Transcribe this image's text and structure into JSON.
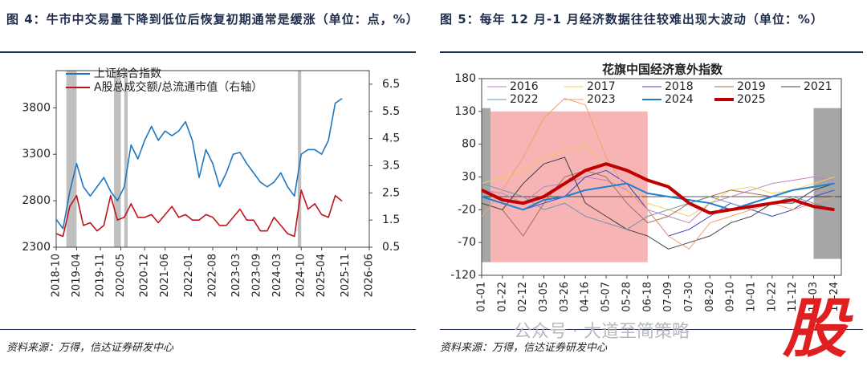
{
  "chart_data": [
    {
      "type": "line",
      "title": "图 4：牛市中交易量下降到低位后恢复初期通常是缓涨（单位：点，%）",
      "source": "资料来源：万得，信达证券研发中心",
      "x": [
        "2018-10",
        "2018-12",
        "2019-02",
        "2019-04",
        "2019-06",
        "2019-08",
        "2019-10",
        "2019-12",
        "2020-02",
        "2020-04",
        "2020-06",
        "2020-08",
        "2020-10",
        "2020-12",
        "2021-02",
        "2021-04",
        "2021-06",
        "2021-08",
        "2021-10",
        "2021-12",
        "2022-02",
        "2022-04",
        "2022-06",
        "2022-08",
        "2022-10",
        "2022-12",
        "2023-02",
        "2023-04",
        "2023-06",
        "2023-08",
        "2023-10",
        "2023-12",
        "2024-02",
        "2024-04",
        "2024-06",
        "2024-08",
        "2024-10",
        "2024-12",
        "2025-02",
        "2025-04",
        "2025-06",
        "2025-08",
        "2025-10"
      ],
      "xlim": [
        "2018-10",
        "2026-06"
      ],
      "xticks": [
        "2018-10",
        "2019-04",
        "2019-11",
        "2020-05",
        "2020-12",
        "2021-06",
        "2022-01",
        "2022-08",
        "2023-03",
        "2023-09",
        "2024-03",
        "2024-10",
        "2025-04",
        "2025-11",
        "2026-06"
      ],
      "ylim": [
        2300,
        4200
      ],
      "yticks": [
        2300,
        2800,
        3300,
        3800
      ],
      "y2lim": [
        0.5,
        7
      ],
      "y2ticks": [
        0.5,
        1.5,
        2.5,
        3.5,
        4.5,
        5.5,
        6.5
      ],
      "highlight_periods": [
        [
          "2019-01",
          "2019-04"
        ],
        [
          "2020-03",
          "2020-05"
        ],
        [
          "2020-06",
          "2020-07"
        ],
        [
          "2024-09",
          "2024-10"
        ]
      ],
      "highlight_color": "#bfbfbf",
      "series": [
        {
          "name": "上证综合指数",
          "color": "#1f77c0",
          "values": [
            2600,
            2500,
            2900,
            3200,
            2950,
            2850,
            2950,
            3050,
            2900,
            2800,
            2950,
            3400,
            3250,
            3450,
            3600,
            3450,
            3550,
            3500,
            3550,
            3650,
            3450,
            3050,
            3350,
            3200,
            2950,
            3100,
            3300,
            3320,
            3200,
            3100,
            3000,
            2950,
            3000,
            3100,
            2950,
            2850,
            3300,
            3350,
            3350,
            3300,
            3450,
            3850,
            3900
          ]
        },
        {
          "name": "A股总成交额/总流通市值（右轴）",
          "color": "#c0141c",
          "axis": "y2",
          "values": [
            1.0,
            0.9,
            2.0,
            2.4,
            1.3,
            1.4,
            1.1,
            1.3,
            2.4,
            1.5,
            1.6,
            2.1,
            1.6,
            1.6,
            1.7,
            1.4,
            1.7,
            2.0,
            1.6,
            1.7,
            1.5,
            1.5,
            1.7,
            1.6,
            1.3,
            1.3,
            1.6,
            1.9,
            1.5,
            1.5,
            1.1,
            1.1,
            1.6,
            1.3,
            1.0,
            0.9,
            2.6,
            1.9,
            2.1,
            1.7,
            1.6,
            2.4,
            2.2
          ]
        }
      ]
    },
    {
      "type": "line",
      "title": "图 5：每年 12 月-1 月经济数据往往较难出现大波动（单位：%）",
      "chart_title": "花旗中国经济意外指数",
      "source": "资料来源：万得，信达证券研发中心",
      "x": [
        "01-01",
        "01-22",
        "02-12",
        "03-05",
        "03-26",
        "04-16",
        "05-07",
        "05-28",
        "06-18",
        "07-09",
        "07-30",
        "08-20",
        "09-10",
        "10-01",
        "10-22",
        "11-12",
        "12-03",
        "12-24"
      ],
      "xlim": [
        "01-01",
        "12-31"
      ],
      "xticks": [
        "01-01",
        "01-22",
        "02-12",
        "03-05",
        "03-26",
        "04-16",
        "05-07",
        "05-28",
        "06-18",
        "07-09",
        "07-30",
        "08-20",
        "09-10",
        "10-01",
        "10-22",
        "11-12",
        "12-03",
        "12-24"
      ],
      "ylim": [
        -120,
        180
      ],
      "yticks": [
        -120,
        -70,
        -20,
        30,
        80,
        130,
        180
      ],
      "highlights": [
        {
          "x": [
            "01-01",
            "01-10"
          ],
          "y": [
            -100,
            135
          ],
          "color": "#a6a6a6"
        },
        {
          "x": [
            "01-10",
            "06-18"
          ],
          "y": [
            -100,
            130
          ],
          "color": "#f7b4b4"
        },
        {
          "x": [
            "12-03",
            "12-31"
          ],
          "y": [
            -95,
            135
          ],
          "color": "#a6a6a6"
        }
      ],
      "series": [
        {
          "name": "2016",
          "color": "#c080c0",
          "line_width": 1,
          "values": [
            10,
            5,
            -10,
            15,
            20,
            30,
            25,
            10,
            -20,
            -30,
            -40,
            -10,
            0,
            10,
            20,
            25,
            30,
            25
          ]
        },
        {
          "name": "2017",
          "color": "#f0d060",
          "line_width": 1,
          "values": [
            20,
            30,
            40,
            60,
            70,
            80,
            40,
            20,
            -10,
            -20,
            -30,
            -10,
            10,
            15,
            5,
            10,
            20,
            30
          ]
        },
        {
          "name": "2018",
          "color": "#4040c0",
          "line_width": 1,
          "values": [
            0,
            -10,
            -20,
            -10,
            0,
            30,
            40,
            20,
            -20,
            -60,
            -50,
            -30,
            -10,
            -20,
            -30,
            -20,
            0,
            10
          ]
        },
        {
          "name": "2019",
          "color": "#a07050",
          "line_width": 1,
          "values": [
            -10,
            -20,
            -60,
            -10,
            30,
            40,
            30,
            -10,
            -40,
            -30,
            -10,
            0,
            10,
            5,
            0,
            10,
            15,
            20
          ]
        },
        {
          "name": "2021",
          "color": "#404040",
          "line_width": 1,
          "values": [
            -10,
            -20,
            20,
            50,
            60,
            -10,
            -30,
            -50,
            -60,
            -80,
            -70,
            -60,
            -40,
            -30,
            -10,
            -10,
            10,
            20
          ]
        },
        {
          "name": "2022",
          "color": "#7090b0",
          "line_width": 1,
          "values": [
            20,
            10,
            0,
            -20,
            -10,
            -30,
            -40,
            -50,
            -30,
            -20,
            -10,
            0,
            -10,
            -20,
            -10,
            0,
            -10,
            -20
          ]
        },
        {
          "name": "2023",
          "color": "#f0a070",
          "line_width": 1,
          "values": [
            -30,
            10,
            60,
            120,
            150,
            140,
            60,
            10,
            -20,
            -60,
            -80,
            -40,
            -30,
            -20,
            -10,
            -20,
            -10,
            0
          ]
        },
        {
          "name": "2024",
          "color": "#2080d0",
          "line_width": 2,
          "values": [
            0,
            -10,
            -20,
            -5,
            0,
            10,
            15,
            20,
            5,
            0,
            -5,
            -10,
            -20,
            -10,
            0,
            10,
            15,
            20
          ]
        },
        {
          "name": "2025",
          "color": "#c00000",
          "line_width": 4,
          "values": [
            10,
            -5,
            -10,
            0,
            20,
            40,
            50,
            40,
            25,
            15,
            -10,
            -25,
            -20,
            -15,
            -10,
            -5,
            -15,
            -20
          ]
        }
      ]
    }
  ],
  "watermark": {
    "text": "公众号 · 大道至简策略",
    "logo": "股"
  }
}
